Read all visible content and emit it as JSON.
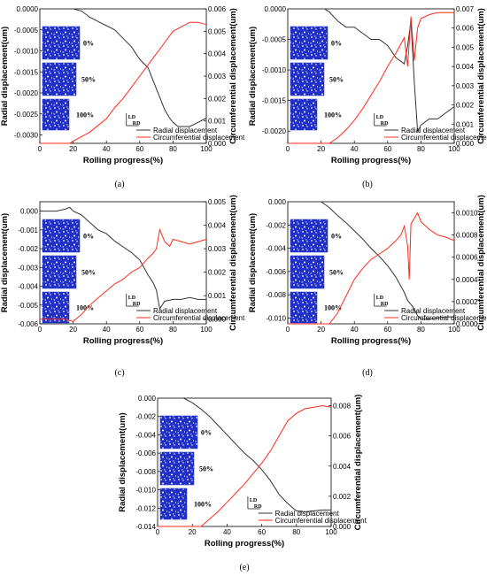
{
  "colors": {
    "radial": "#333333",
    "circumferential": "#ff2a1a",
    "micro": "#1f2fc8"
  },
  "chart_data": [
    {
      "type": "line",
      "caption": "(a)",
      "xlabel": "Rolling progress(%)",
      "ylabel": "Radial displacement(um)",
      "y2label": "Circumferential displacement(um)",
      "xlim": [
        0,
        100
      ],
      "ylim": [
        -0.0032,
        0
      ],
      "y2lim": [
        0,
        0.006
      ],
      "xticks": [
        "0",
        "20",
        "40",
        "60",
        "80",
        "100"
      ],
      "yticks": [
        "0.0000",
        "-0.0005",
        "-0.0010",
        "-0.0015",
        "-0.0020",
        "-0.0025",
        "-0.0030"
      ],
      "y2ticks": [
        "0.000",
        "0.001",
        "0.002",
        "0.003",
        "0.004",
        "0.005",
        "0.006"
      ],
      "micro_labels": [
        "0%",
        "50%",
        "100%"
      ],
      "dir_labels": [
        "LD",
        "RD"
      ],
      "series": [
        {
          "name": "Radial displacement",
          "axis": "y",
          "x": [
            0,
            15,
            20,
            25,
            30,
            35,
            40,
            45,
            50,
            55,
            60,
            65,
            68,
            70,
            72,
            75,
            78,
            80,
            83,
            85,
            90,
            95,
            100
          ],
          "values": [
            0,
            0,
            0,
            -5e-05,
            -0.0002,
            -0.0003,
            -0.0004,
            -0.0005,
            -0.0007,
            -0.0009,
            -0.0012,
            -0.0014,
            -0.0017,
            -0.0019,
            -0.0021,
            -0.0024,
            -0.0026,
            -0.0027,
            -0.0028,
            -0.0028,
            -0.0028,
            -0.0027,
            -0.0026
          ]
        },
        {
          "name": "Circumferential displacement",
          "axis": "y2",
          "x": [
            0,
            18,
            20,
            25,
            30,
            35,
            40,
            45,
            50,
            55,
            60,
            65,
            70,
            75,
            80,
            85,
            90,
            95,
            100
          ],
          "values": [
            0,
            0,
            0.0001,
            0.0003,
            0.0005,
            0.0008,
            0.0011,
            0.0016,
            0.002,
            0.0025,
            0.003,
            0.0035,
            0.004,
            0.0045,
            0.005,
            0.0052,
            0.0054,
            0.0054,
            0.0053
          ]
        }
      ]
    },
    {
      "type": "line",
      "caption": "(b)",
      "xlabel": "Rolling progress(%)",
      "ylabel": "Radial displacement(um)",
      "y2label": "Circumferential displacement(um)",
      "xlim": [
        0,
        100
      ],
      "ylim": [
        -0.0022,
        0
      ],
      "y2lim": [
        0,
        0.007
      ],
      "xticks": [
        "0",
        "20",
        "40",
        "60",
        "80",
        "100"
      ],
      "yticks": [
        "0.0000",
        "-0.0005",
        "-0.0010",
        "-0.0015",
        "-0.0020"
      ],
      "y2ticks": [
        "0.000",
        "0.001",
        "0.002",
        "0.003",
        "0.004",
        "0.005",
        "0.006",
        "0.007"
      ],
      "micro_labels": [
        "0%",
        "50%",
        "100%"
      ],
      "dir_labels": [
        "LD",
        "RD"
      ],
      "series": [
        {
          "name": "Radial displacement",
          "axis": "y",
          "x": [
            0,
            22,
            25,
            30,
            35,
            40,
            45,
            50,
            55,
            60,
            65,
            70,
            72,
            74,
            76,
            78,
            80,
            85,
            90,
            95,
            100
          ],
          "values": [
            0,
            0,
            -5e-05,
            -0.0002,
            -0.0003,
            -0.0003,
            -0.0004,
            -0.0005,
            -0.0005,
            -0.0006,
            -0.0008,
            -0.0009,
            -0.0006,
            -0.0002,
            -0.0012,
            -0.002,
            -0.0019,
            -0.0018,
            -0.0018,
            -0.0017,
            -0.0016
          ]
        },
        {
          "name": "Circumferential displacement",
          "axis": "y2",
          "x": [
            0,
            25,
            30,
            35,
            40,
            45,
            50,
            55,
            60,
            65,
            70,
            72,
            74,
            76,
            78,
            80,
            85,
            90,
            95,
            100
          ],
          "values": [
            0,
            0,
            0.0003,
            0.0007,
            0.0012,
            0.0018,
            0.0025,
            0.0032,
            0.004,
            0.0047,
            0.0055,
            0.004,
            0.0066,
            0.0043,
            0.006,
            0.0065,
            0.0067,
            0.0068,
            0.0068,
            0.0068
          ]
        }
      ]
    },
    {
      "type": "line",
      "caption": "(c)",
      "xlabel": "Rolling progress(%)",
      "ylabel": "Radial displacement(um)",
      "y2label": "Circumferential displacement(um)",
      "xlim": [
        0,
        100
      ],
      "ylim": [
        -0.006,
        0.0005
      ],
      "y2lim": [
        -0.0002,
        0.005
      ],
      "xticks": [
        "0",
        "20",
        "40",
        "60",
        "80",
        "100"
      ],
      "yticks": [
        "0.000",
        "-0.001",
        "-0.002",
        "-0.003",
        "-0.004",
        "-0.005",
        "-0.006"
      ],
      "y2ticks": [
        "0.000",
        "0.001",
        "0.002",
        "0.003",
        "0.004",
        "0.005"
      ],
      "micro_labels": [
        "0%",
        "50%",
        "100%"
      ],
      "dir_labels": [
        "LD",
        "RD"
      ],
      "series": [
        {
          "name": "Radial displacement",
          "axis": "y",
          "x": [
            0,
            10,
            15,
            18,
            20,
            25,
            30,
            35,
            40,
            45,
            50,
            55,
            60,
            65,
            68,
            70,
            72,
            75,
            80,
            85,
            90,
            95,
            100
          ],
          "values": [
            0,
            0,
            0.0001,
            0.0002,
            0,
            -0.0002,
            -0.0006,
            -0.001,
            -0.0012,
            -0.0016,
            -0.0019,
            -0.0022,
            -0.0026,
            -0.0034,
            -0.0038,
            -0.0042,
            -0.0052,
            -0.0048,
            -0.0047,
            -0.0047,
            -0.0046,
            -0.0047,
            -0.0047
          ]
        },
        {
          "name": "Circumferential displacement",
          "axis": "y2",
          "x": [
            0,
            15,
            20,
            25,
            30,
            35,
            40,
            45,
            50,
            55,
            60,
            65,
            68,
            70,
            72,
            75,
            78,
            80,
            85,
            90,
            95,
            100
          ],
          "values": [
            0,
            0,
            -0.0001,
            0.0002,
            0.0006,
            0.0009,
            0.0012,
            0.0015,
            0.0017,
            0.002,
            0.0022,
            0.0026,
            0.0028,
            0.003,
            0.0038,
            0.0033,
            0.0031,
            0.0034,
            0.0033,
            0.0032,
            0.0033,
            0.0034
          ]
        }
      ]
    },
    {
      "type": "line",
      "caption": "(d)",
      "xlabel": "Rolling progress(%)",
      "ylabel": "Radial displacement(um)",
      "y2label": "Circumferential displacement(um)",
      "xlim": [
        0,
        100
      ],
      "ylim": [
        -0.0105,
        0
      ],
      "y2lim": [
        0,
        0.0011
      ],
      "xticks": [
        "0",
        "20",
        "40",
        "60",
        "80",
        "100"
      ],
      "yticks": [
        "0.000",
        "-0.002",
        "-0.004",
        "-0.006",
        "-0.008",
        "-0.010"
      ],
      "y2ticks": [
        "0.0000",
        "0.0002",
        "0.0004",
        "0.0006",
        "0.0008",
        "0.0010"
      ],
      "micro_labels": [
        "0%",
        "50%",
        "100%"
      ],
      "dir_labels": [
        "LD",
        "RD"
      ],
      "series": [
        {
          "name": "Radial displacement",
          "axis": "y",
          "x": [
            0,
            20,
            25,
            30,
            35,
            40,
            45,
            50,
            55,
            60,
            65,
            70,
            72,
            75,
            78,
            80,
            85,
            90,
            95,
            100
          ],
          "values": [
            0,
            0,
            -0.0005,
            -0.0012,
            -0.0018,
            -0.0025,
            -0.0032,
            -0.004,
            -0.0047,
            -0.0055,
            -0.0065,
            -0.0078,
            -0.0085,
            -0.009,
            -0.0098,
            -0.0101,
            -0.0101,
            -0.01,
            -0.0099,
            -0.0099
          ]
        },
        {
          "name": "Circumferential displacement",
          "axis": "y2",
          "x": [
            0,
            25,
            30,
            35,
            40,
            45,
            50,
            55,
            60,
            65,
            68,
            70,
            72,
            73,
            74,
            76,
            78,
            80,
            85,
            90,
            95,
            100
          ],
          "values": [
            0,
            0,
            0.0001,
            0.00025,
            0.0004,
            0.0005,
            0.00058,
            0.00063,
            0.00068,
            0.00075,
            0.0008,
            0.00088,
            0.0007,
            0.0004,
            0.0009,
            0.00095,
            0.001,
            0.00092,
            0.00085,
            0.0008,
            0.00078,
            0.00075
          ]
        }
      ]
    },
    {
      "type": "line",
      "caption": "(e)",
      "xlabel": "Rolling progress(%)",
      "ylabel": "Radial displacement(um)",
      "y2label": "Circumferential displacement(um)",
      "xlim": [
        0,
        100
      ],
      "ylim": [
        -0.014,
        0
      ],
      "y2lim": [
        0,
        0.0085
      ],
      "xticks": [
        "0",
        "20",
        "40",
        "60",
        "80",
        "100"
      ],
      "yticks": [
        "0.000",
        "-0.002",
        "-0.004",
        "-0.006",
        "-0.008",
        "-0.010",
        "-0.012",
        "-0.014"
      ],
      "y2ticks": [
        "0.000",
        "0.002",
        "0.004",
        "0.006",
        "0.008"
      ],
      "micro_labels": [
        "0%",
        "50%",
        "100%"
      ],
      "dir_labels": [
        "LD",
        "RD"
      ],
      "series": [
        {
          "name": "Radial displacement",
          "axis": "y",
          "x": [
            0,
            15,
            20,
            25,
            30,
            35,
            40,
            45,
            50,
            55,
            60,
            65,
            70,
            75,
            78,
            80,
            85,
            90,
            95,
            100
          ],
          "values": [
            0,
            0,
            -0.0005,
            -0.0012,
            -0.002,
            -0.003,
            -0.004,
            -0.005,
            -0.006,
            -0.0068,
            -0.0078,
            -0.009,
            -0.0105,
            -0.0115,
            -0.012,
            -0.0123,
            -0.0124,
            -0.0123,
            -0.0122,
            -0.0122
          ]
        },
        {
          "name": "Circumferential displacement",
          "axis": "y2",
          "x": [
            0,
            25,
            30,
            35,
            40,
            45,
            50,
            55,
            60,
            65,
            70,
            75,
            80,
            85,
            90,
            95,
            100
          ],
          "values": [
            0,
            0,
            0.0005,
            0.001,
            0.0016,
            0.0022,
            0.0028,
            0.0035,
            0.0042,
            0.005,
            0.006,
            0.007,
            0.0075,
            0.0078,
            0.0079,
            0.008,
            0.0079
          ]
        }
      ]
    }
  ]
}
